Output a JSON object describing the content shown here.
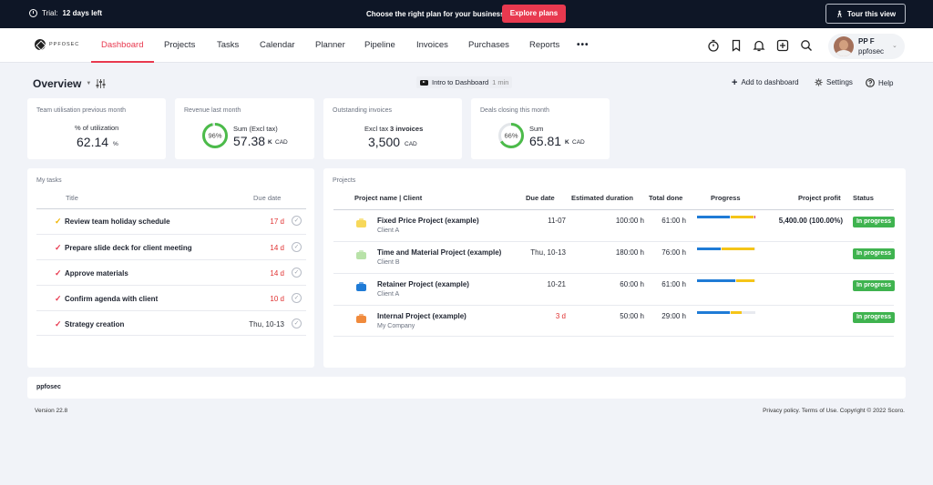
{
  "topbar": {
    "trial_prefix": "Trial:",
    "trial_days": "12 days left",
    "choose_text": "Choose the right plan for your business",
    "explore_label": "Explore plans",
    "tour_label": "Tour this view"
  },
  "nav": {
    "logo": "PPFOSEC",
    "items": [
      "Dashboard",
      "Projects",
      "Tasks",
      "Calendar",
      "Planner",
      "Pipeline",
      "Invoices",
      "Purchases",
      "Reports"
    ],
    "active": "Dashboard",
    "more": "•••",
    "user_name": "PP F",
    "user_company": "ppfosec"
  },
  "toolbar": {
    "overview": "Overview",
    "intro_label": "Intro to Dashboard",
    "intro_duration": "1 min",
    "add_label": "Add to dashboard",
    "settings_label": "Settings",
    "help_label": "Help"
  },
  "kpis": [
    {
      "title": "Team utilisation previous month",
      "label": "% of utilization",
      "value": "62.14",
      "unit": "%"
    },
    {
      "title": "Revenue last month",
      "gauge": "96%",
      "gauge_fraction": 0.96,
      "label": "Sum (Excl tax)",
      "value": "57.38",
      "unit1": "K",
      "unit2": "CAD"
    },
    {
      "title": "Outstanding invoices",
      "label": "Excl tax",
      "label_bold": "3 invoices",
      "value": "3,500",
      "unit": "CAD"
    },
    {
      "title": "Deals closing this month",
      "gauge": "66%",
      "gauge_fraction": 0.66,
      "label": "Sum",
      "value": "65.81",
      "unit1": "K",
      "unit2": "CAD"
    }
  ],
  "tasks": {
    "title": "My tasks",
    "col_title": "Title",
    "col_due": "Due date",
    "rows": [
      {
        "label": "Review team holiday schedule",
        "due": "17 d",
        "check_color": "#f0b400",
        "overdue": true
      },
      {
        "label": "Prepare slide deck for client meeting",
        "due": "14 d",
        "check_color": "#e8394f",
        "overdue": true
      },
      {
        "label": "Approve materials",
        "due": "14 d",
        "check_color": "#e8394f",
        "overdue": true
      },
      {
        "label": "Confirm agenda with client",
        "due": "10 d",
        "check_color": "#e8394f",
        "overdue": true
      },
      {
        "label": "Strategy creation",
        "due": "Thu, 10-13",
        "check_color": "#e8394f",
        "overdue": false
      }
    ]
  },
  "projects": {
    "title": "Projects",
    "cols": [
      "Project name | Client",
      "Due date",
      "Estimated duration",
      "Total done",
      "Progress",
      "Project profit",
      "Status"
    ],
    "rows": [
      {
        "name": "Fixed Price Project (example)",
        "client": "Client A",
        "due": "11-07",
        "due_overdue": false,
        "est": "100:00 h",
        "done": "61:00 h",
        "profit": "5,400.00 (100.00%)",
        "status": "In progress",
        "color": "#f7d85a",
        "progress": [
          0.58,
          0.4,
          0.02
        ]
      },
      {
        "name": "Time and Material Project (example)",
        "client": "Client B",
        "due": "Thu, 10-13",
        "due_overdue": false,
        "est": "180:00 h",
        "done": "76:00 h",
        "profit": "",
        "status": "In progress",
        "color": "#b8e2a8",
        "progress": [
          0.42,
          0.58,
          0
        ]
      },
      {
        "name": "Retainer Project (example)",
        "client": "Client A",
        "due": "10-21",
        "due_overdue": false,
        "est": "60:00 h",
        "done": "61:00 h",
        "profit": "",
        "status": "In progress",
        "color": "#1f7bd6",
        "progress": [
          0.67,
          0.33,
          0
        ]
      },
      {
        "name": "Internal Project (example)",
        "client": "My Company",
        "due": "3 d",
        "due_overdue": true,
        "est": "50:00 h",
        "done": "29:00 h",
        "profit": "",
        "status": "In progress",
        "color": "#f08a3c",
        "progress": [
          0.58,
          0.2,
          0
        ]
      }
    ]
  },
  "footer": {
    "brand": "ppfosec",
    "version": "Version 22.8",
    "legal": "Privacy policy. Terms of Use. Copyright © 2022 Scoro."
  },
  "colors": {
    "accent": "#e8394f",
    "progress_blue": "#1f7bd6",
    "progress_yellow": "#f5c518",
    "progress_red": "#e8394f",
    "status_green": "#3fb34f",
    "gauge_green": "#4cbb4a"
  }
}
